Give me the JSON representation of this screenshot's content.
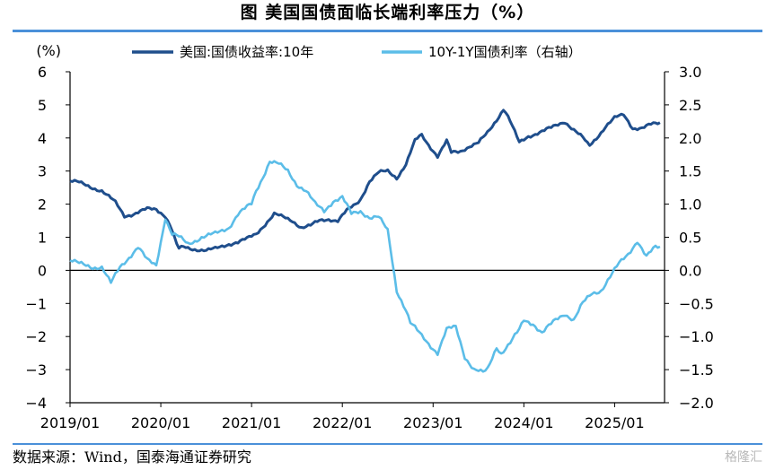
{
  "header": {
    "title": "图  美国国债面临长端利率压力（%）"
  },
  "footer": {
    "source": "数据来源：Wind，国泰海通证券研究",
    "watermark": "格隆汇"
  },
  "colors": {
    "series1": "#1f4e8c",
    "series2": "#5bbde8",
    "axis": "#000000",
    "rule": "#4a90d9"
  },
  "chart_data": {
    "type": "line",
    "title": "美国国债面临长端利率压力（%）",
    "left_axis": {
      "unit": "(%)",
      "range": [
        -4,
        6
      ],
      "ticks": [
        "6",
        "5",
        "4",
        "3",
        "2",
        "1",
        "0",
        "−1",
        "−2",
        "−3",
        "−4"
      ]
    },
    "right_axis": {
      "range": [
        -2.0,
        3.0
      ],
      "ticks": [
        "3.0",
        "2.5",
        "2.0",
        "1.5",
        "1.0",
        "0.5",
        "0.0",
        "−0.5",
        "−1.0",
        "−1.5",
        "−2.0"
      ]
    },
    "x_axis": {
      "range": [
        2019.0,
        2025.55
      ],
      "ticks": [
        "2019/01",
        "2020/01",
        "2021/01",
        "2022/01",
        "2023/01",
        "2024/01",
        "2025/01"
      ]
    },
    "series": [
      {
        "name": "美国:国债收益率:10年",
        "axis": "left",
        "x": [
          2019.0,
          2019.1,
          2019.25,
          2019.35,
          2019.5,
          2019.6,
          2019.7,
          2019.85,
          2019.95,
          2020.05,
          2020.12,
          2020.17,
          2020.2,
          2020.25,
          2020.35,
          2020.5,
          2020.6,
          2020.75,
          2020.85,
          2020.95,
          2021.05,
          2021.15,
          2021.25,
          2021.35,
          2021.45,
          2021.55,
          2021.65,
          2021.75,
          2021.85,
          2021.95,
          2022.05,
          2022.15,
          2022.2,
          2022.3,
          2022.4,
          2022.5,
          2022.6,
          2022.7,
          2022.8,
          2022.87,
          2022.95,
          2023.05,
          2023.15,
          2023.2,
          2023.3,
          2023.4,
          2023.5,
          2023.6,
          2023.7,
          2023.78,
          2023.85,
          2023.95,
          2024.05,
          2024.15,
          2024.3,
          2024.45,
          2024.55,
          2024.65,
          2024.72,
          2024.8,
          2024.9,
          2025.0,
          2025.1,
          2025.2,
          2025.3,
          2025.4,
          2025.5
        ],
        "values": [
          2.7,
          2.65,
          2.5,
          2.4,
          2.05,
          1.65,
          1.7,
          1.85,
          1.85,
          1.65,
          1.25,
          0.8,
          0.65,
          0.7,
          0.65,
          0.6,
          0.65,
          0.8,
          0.85,
          0.95,
          1.1,
          1.4,
          1.7,
          1.6,
          1.5,
          1.3,
          1.35,
          1.5,
          1.55,
          1.5,
          1.8,
          2.0,
          2.15,
          2.7,
          2.95,
          3.0,
          2.8,
          3.2,
          3.9,
          4.1,
          3.8,
          3.45,
          3.9,
          3.55,
          3.6,
          3.75,
          3.85,
          4.15,
          4.55,
          4.9,
          4.5,
          3.85,
          4.05,
          4.15,
          4.3,
          4.5,
          4.25,
          4.0,
          3.75,
          4.0,
          4.35,
          4.6,
          4.7,
          4.3,
          4.3,
          4.4,
          4.45
        ]
      },
      {
        "name": "10Y-1Y国债利率（右轴）",
        "axis": "right",
        "x": [
          2019.0,
          2019.1,
          2019.25,
          2019.35,
          2019.45,
          2019.55,
          2019.65,
          2019.75,
          2019.85,
          2019.95,
          2020.05,
          2020.12,
          2020.2,
          2020.3,
          2020.45,
          2020.6,
          2020.75,
          2020.85,
          2021.0,
          2021.05,
          2021.12,
          2021.2,
          2021.3,
          2021.4,
          2021.5,
          2021.6,
          2021.7,
          2021.8,
          2021.9,
          2022.0,
          2022.1,
          2022.2,
          2022.3,
          2022.4,
          2022.5,
          2022.6,
          2022.65,
          2022.7,
          2022.75,
          2022.85,
          2022.95,
          2023.05,
          2023.15,
          2023.25,
          2023.35,
          2023.45,
          2023.55,
          2023.6,
          2023.7,
          2023.75,
          2023.85,
          2023.95,
          2024.0,
          2024.1,
          2024.2,
          2024.35,
          2024.45,
          2024.55,
          2024.65,
          2024.75,
          2024.85,
          2024.95,
          2025.05,
          2025.15,
          2025.25,
          2025.35,
          2025.45,
          2025.5
        ],
        "values": [
          0.15,
          0.1,
          0.05,
          0.05,
          -0.2,
          0.05,
          0.2,
          0.35,
          0.15,
          0.08,
          0.8,
          0.55,
          0.5,
          0.4,
          0.5,
          0.55,
          0.65,
          0.85,
          1.0,
          1.2,
          1.4,
          1.65,
          1.6,
          1.5,
          1.3,
          1.2,
          1.0,
          0.9,
          1.05,
          1.1,
          0.85,
          0.9,
          0.8,
          0.8,
          0.6,
          -0.3,
          -0.45,
          -0.6,
          -0.8,
          -0.95,
          -1.1,
          -1.25,
          -0.9,
          -0.85,
          -1.3,
          -1.5,
          -1.55,
          -1.5,
          -1.15,
          -1.25,
          -1.1,
          -0.9,
          -0.75,
          -0.8,
          -0.95,
          -0.75,
          -0.65,
          -0.75,
          -0.5,
          -0.35,
          -0.3,
          -0.1,
          0.1,
          0.25,
          0.45,
          0.2,
          0.35,
          0.35
        ]
      }
    ]
  }
}
